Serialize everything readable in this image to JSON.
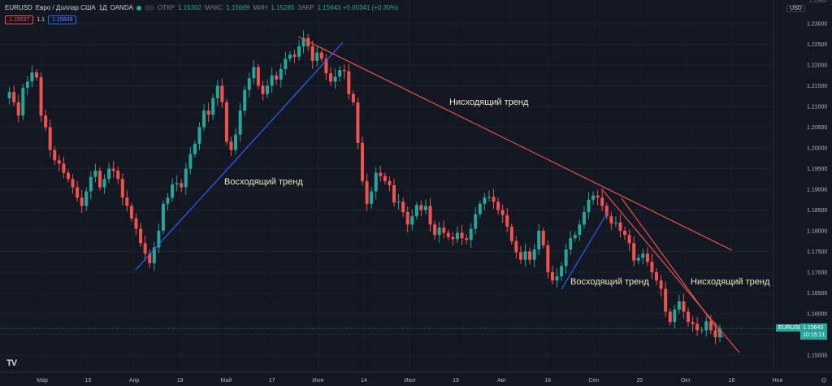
{
  "header": {
    "symbol": "EURUSD",
    "description": "Евро / Доллар США",
    "interval": "1Д",
    "source": "OANDA",
    "open_label": "ОТКР",
    "open_value": "1.15302",
    "high_label": "МАКС",
    "high_value": "1.15669",
    "low_label": "МИН",
    "low_value": "1.15285",
    "close_label": "ЗАКР",
    "close_value": "1.15643 +0.00341 (+0.30%)",
    "sell_price": "1.15637",
    "spread": "1.1",
    "buy_price": "1.15649",
    "currency": "USD",
    "colors": {
      "up": "#26a69a",
      "down": "#ef5350"
    }
  },
  "price_label": {
    "symbol": "EURUSD",
    "price": "1.15643",
    "countdown": "10:15:21"
  },
  "chart_data": {
    "type": "candlestick",
    "y_axis_ticks": [
      "1.23000",
      "1.22500",
      "1.22000",
      "1.21500",
      "1.21000",
      "1.20500",
      "1.20000",
      "1.19500",
      "1.19000",
      "1.18500",
      "1.18000",
      "1.17500",
      "1.17000",
      "1.16500",
      "1.16000",
      "1.15500",
      "1.15000"
    ],
    "y_axis_top_partial": "1.23500",
    "ylim": [
      1.1475,
      1.2345
    ],
    "x_axis_labels": [
      "Мар",
      "15",
      "Апр",
      "19",
      "Май",
      "17",
      "Июн",
      "14",
      "Июл",
      "19",
      "Авг",
      "16",
      "Сен",
      "20",
      "Окт",
      "18",
      "Ноя"
    ],
    "close_series": [
      1.212,
      1.2135,
      1.211,
      1.2078,
      1.2145,
      1.216,
      1.2182,
      1.217,
      1.2078,
      1.205,
      1.1995,
      1.197,
      1.1962,
      1.194,
      1.1925,
      1.1905,
      1.188,
      1.186,
      1.1895,
      1.193,
      1.1945,
      1.1905,
      1.1925,
      1.195,
      1.1945,
      1.1925,
      1.188,
      1.186,
      1.183,
      1.1805,
      1.177,
      1.1745,
      1.1722,
      1.176,
      1.18,
      1.1865,
      1.188,
      1.1912,
      1.1915,
      1.1905,
      1.195,
      1.1985,
      1.201,
      1.205,
      1.209,
      1.208,
      1.212,
      1.215,
      1.211,
      1.2015,
      1.1995,
      1.2032,
      1.209,
      1.214,
      1.2168,
      1.2195,
      1.215,
      1.213,
      1.215,
      1.2175,
      1.2165,
      1.219,
      1.2215,
      1.2225,
      1.222,
      1.2245,
      1.2265,
      1.2245,
      1.221,
      1.223,
      1.2215,
      1.218,
      1.216,
      1.2172,
      1.2188,
      1.2185,
      1.213,
      1.211,
      1.2012,
      1.192,
      1.1865,
      1.1895,
      1.194,
      1.1932,
      1.192,
      1.191,
      1.1868,
      1.187,
      1.1845,
      1.1815,
      1.1835,
      1.1862,
      1.185,
      1.186,
      1.1815,
      1.179,
      1.1808,
      1.1795,
      1.1785,
      1.178,
      1.1795,
      1.1782,
      1.1778,
      1.1805,
      1.184,
      1.1865,
      1.188,
      1.1882,
      1.187,
      1.185,
      1.1838,
      1.181,
      1.1775,
      1.1748,
      1.173,
      1.175,
      1.173,
      1.1755,
      1.18,
      1.1765,
      1.17,
      1.168,
      1.169,
      1.1715,
      1.1755,
      1.1782,
      1.179,
      1.1815,
      1.1845,
      1.1875,
      1.1885,
      1.188,
      1.186,
      1.1835,
      1.1818,
      1.182,
      1.18,
      1.179,
      1.177,
      1.1728,
      1.1735,
      1.1745,
      1.1725,
      1.17,
      1.168,
      1.166,
      1.1605,
      1.158,
      1.161,
      1.163,
      1.1605,
      1.158,
      1.1575,
      1.156,
      1.156,
      1.1582,
      1.156,
      1.1543,
      1.1564
    ]
  },
  "annotations": [
    {
      "text": "Нисходящий тренд",
      "color": "#f2e6c7"
    },
    {
      "text": "Восходящий тренд",
      "color": "#f2e6c7"
    },
    {
      "text": "Восходящий тренд",
      "color": "#f2e6c7"
    },
    {
      "text": "Нисходящий тренд",
      "color": "#f2e6c7"
    }
  ],
  "trendlines": [
    {
      "kind": "down",
      "color": "#e5534b"
    },
    {
      "kind": "up",
      "color": "#2962ff"
    },
    {
      "kind": "up",
      "color": "#2962ff"
    },
    {
      "kind": "down",
      "color": "#e5534b"
    },
    {
      "kind": "down",
      "color": "#e5534b"
    }
  ]
}
